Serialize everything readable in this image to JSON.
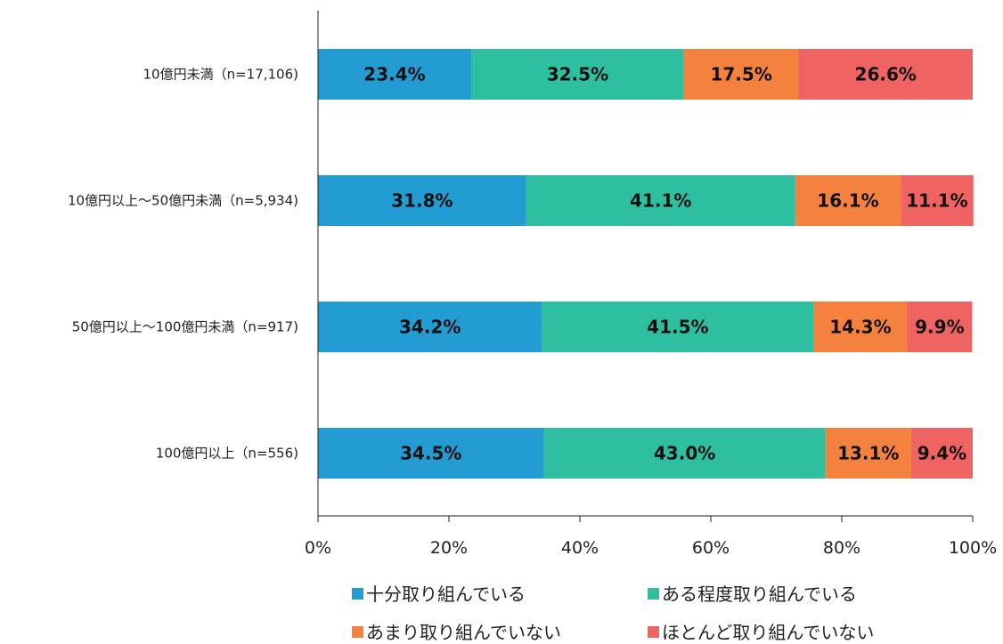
{
  "chart_data": {
    "type": "bar",
    "orientation": "horizontal",
    "stacked": true,
    "categories": [
      "10億円未満（n=17,106)",
      "10億円以上～50億円未満（n=5,934)",
      "50億円以上～100億円未満（n=917)",
      "100億円以上（n=556)"
    ],
    "series": [
      {
        "name": "十分取り組んでいる",
        "color": "#239bd3",
        "values": [
          23.4,
          31.8,
          34.2,
          34.5
        ]
      },
      {
        "name": "ある程度取り組んでいる",
        "color": "#2ebfa0",
        "values": [
          32.5,
          41.1,
          41.5,
          43.0
        ]
      },
      {
        "name": "あまり取り組んでいない",
        "color": "#f4823e",
        "values": [
          17.5,
          16.1,
          14.3,
          13.1
        ]
      },
      {
        "name": "ほとんど取り組んでいない",
        "color": "#ef6363",
        "values": [
          26.6,
          11.1,
          9.9,
          9.4
        ]
      }
    ],
    "xlim": [
      0,
      100
    ],
    "xticks": [
      "0%",
      "20%",
      "40%",
      "60%",
      "80%",
      "100%"
    ],
    "grid": false,
    "legend_position": "bottom",
    "data_label_format": "percent-1dp"
  }
}
